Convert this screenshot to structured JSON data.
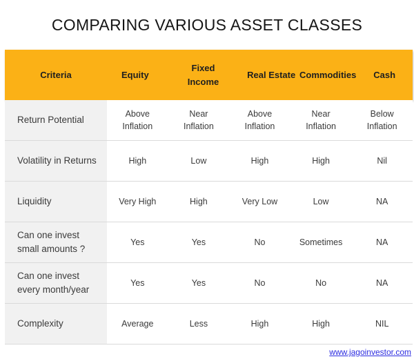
{
  "title": "COMPARING VARIOUS ASSET CLASSES",
  "colors": {
    "header_bg": "#FBB116",
    "criteria_col_bg": "#F1F1F1",
    "divider": "#DADADA",
    "link_color": "#2C2CE0",
    "header_text": "#1F1F1F",
    "body_text": "#3A3A3A",
    "title_text": "#151515"
  },
  "chart_data": {
    "type": "table",
    "title": "COMPARING VARIOUS ASSET CLASSES",
    "columns": [
      "Criteria",
      "Equity",
      "Fixed Income",
      "Real Estate",
      "Commodities",
      "Cash"
    ],
    "rows": [
      {
        "criteria": "Return Potential",
        "values": [
          "Above Inflation",
          "Near Inflation",
          "Above Inflation",
          "Near Inflation",
          "Below Inflation"
        ]
      },
      {
        "criteria": "Volatility in Returns",
        "values": [
          "High",
          "Low",
          "High",
          "High",
          "Nil"
        ]
      },
      {
        "criteria": "Liquidity",
        "values": [
          "Very High",
          "High",
          "Very Low",
          "Low",
          "NA"
        ]
      },
      {
        "criteria": "Can one invest small amounts ?",
        "values": [
          "Yes",
          "Yes",
          "No",
          "Sometimes",
          "NA"
        ]
      },
      {
        "criteria": "Can one invest  every month/year",
        "values": [
          "Yes",
          "Yes",
          "No",
          "No",
          "NA"
        ]
      },
      {
        "criteria": "Complexity",
        "values": [
          "Average",
          "Less",
          "High",
          "High",
          "NIL"
        ]
      }
    ]
  },
  "footer": {
    "link": "www.jagoinvestor.com"
  }
}
